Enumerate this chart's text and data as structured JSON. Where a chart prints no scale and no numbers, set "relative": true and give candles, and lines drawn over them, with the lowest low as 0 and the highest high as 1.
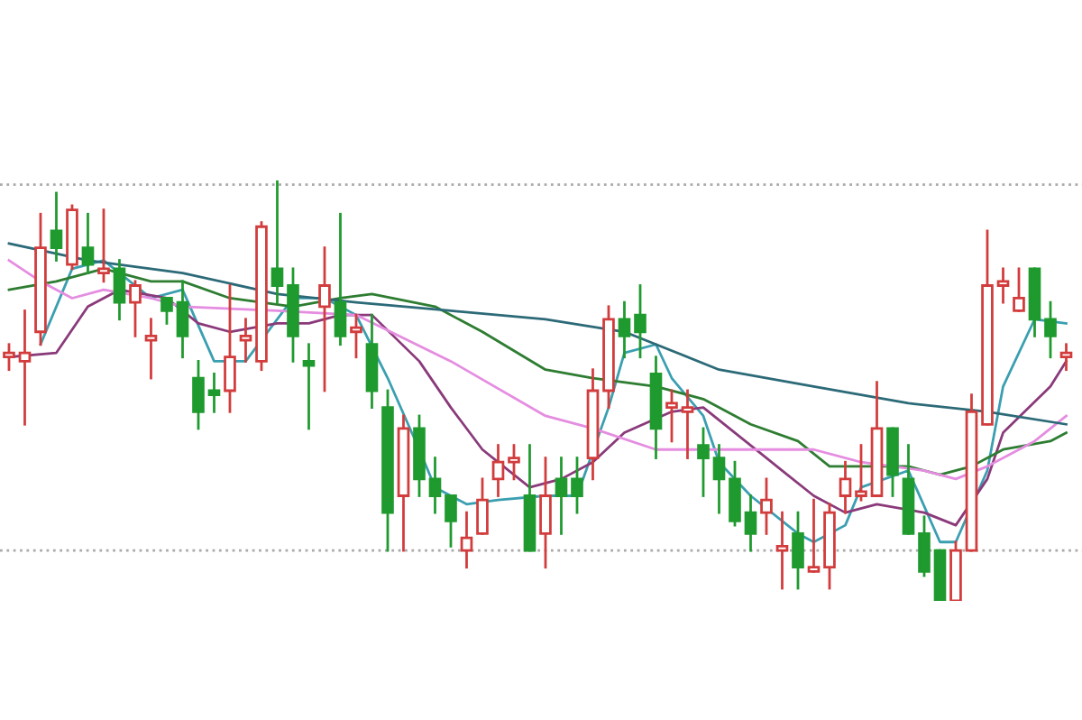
{
  "chart_data": {
    "type": "candlestick",
    "relative": true,
    "categories": [
      null,
      null,
      null,
      null,
      null,
      null,
      null,
      null,
      null,
      null,
      null,
      null,
      null,
      null,
      null,
      null,
      null,
      null,
      null,
      null,
      null,
      null,
      null,
      null,
      null,
      null,
      null,
      null,
      null,
      null,
      null,
      null,
      null,
      null,
      null,
      null,
      null,
      null,
      null,
      null,
      null,
      null,
      null,
      null,
      null,
      null,
      null,
      null,
      null,
      null,
      null,
      null,
      null,
      null,
      null,
      null,
      null,
      null,
      null,
      null,
      null,
      null,
      null,
      null,
      null,
      null,
      null,
      null
    ],
    "ohlc": [
      [
        0.58,
        0.61,
        0.55,
        0.59
      ],
      [
        0.57,
        0.69,
        0.42,
        0.59
      ],
      [
        0.64,
        0.92,
        0.61,
        0.84
      ],
      [
        0.88,
        0.97,
        0.81,
        0.84
      ],
      [
        0.8,
        0.94,
        0.79,
        0.93
      ],
      [
        0.84,
        0.92,
        0.78,
        0.8
      ],
      [
        0.78,
        0.93,
        0.76,
        0.79
      ],
      [
        0.79,
        0.81,
        0.67,
        0.71
      ],
      [
        0.71,
        0.76,
        0.63,
        0.75
      ],
      [
        0.62,
        0.67,
        0.53,
        0.63
      ],
      [
        0.72,
        0.72,
        0.66,
        0.69
      ],
      [
        0.71,
        0.76,
        0.58,
        0.63
      ],
      [
        0.53,
        0.57,
        0.41,
        0.45
      ],
      [
        0.5,
        0.54,
        0.45,
        0.49
      ],
      [
        0.5,
        0.75,
        0.45,
        0.58
      ],
      [
        0.62,
        0.67,
        0.57,
        0.63
      ],
      [
        0.57,
        0.9,
        0.55,
        0.89
      ],
      [
        0.79,
        1.0,
        0.71,
        0.75
      ],
      [
        0.75,
        0.79,
        0.57,
        0.63
      ],
      [
        0.57,
        0.61,
        0.41,
        0.56
      ],
      [
        0.7,
        0.84,
        0.5,
        0.75
      ],
      [
        0.71,
        0.92,
        0.61,
        0.63
      ],
      [
        0.64,
        0.68,
        0.58,
        0.65
      ],
      [
        0.61,
        0.68,
        0.46,
        0.5
      ],
      [
        0.46,
        0.5,
        0.12,
        0.21
      ],
      [
        0.25,
        0.44,
        0.12,
        0.41
      ],
      [
        0.41,
        0.44,
        0.25,
        0.29
      ],
      [
        0.29,
        0.34,
        0.21,
        0.25
      ],
      [
        0.25,
        0.25,
        0.13,
        0.19
      ],
      [
        0.12,
        0.21,
        0.08,
        0.15
      ],
      [
        0.16,
        0.29,
        0.16,
        0.24
      ],
      [
        0.29,
        0.37,
        0.25,
        0.33
      ],
      [
        0.33,
        0.37,
        0.29,
        0.34
      ],
      [
        0.25,
        0.37,
        0.12,
        0.12
      ],
      [
        0.16,
        0.34,
        0.08,
        0.25
      ],
      [
        0.29,
        0.34,
        0.16,
        0.25
      ],
      [
        0.29,
        0.34,
        0.21,
        0.25
      ],
      [
        0.34,
        0.55,
        0.29,
        0.5
      ],
      [
        0.5,
        0.7,
        0.46,
        0.67
      ],
      [
        0.67,
        0.71,
        0.58,
        0.63
      ],
      [
        0.68,
        0.75,
        0.58,
        0.64
      ],
      [
        0.54,
        0.58,
        0.34,
        0.41
      ],
      [
        0.46,
        0.5,
        0.38,
        0.47
      ],
      [
        0.45,
        0.5,
        0.34,
        0.46
      ],
      [
        0.37,
        0.41,
        0.25,
        0.34
      ],
      [
        0.34,
        0.37,
        0.21,
        0.29
      ],
      [
        0.29,
        0.33,
        0.18,
        0.19
      ],
      [
        0.21,
        0.25,
        0.12,
        0.16
      ],
      [
        0.21,
        0.29,
        0.16,
        0.24
      ],
      [
        0.12,
        0.21,
        0.03,
        0.13
      ],
      [
        0.16,
        0.21,
        0.03,
        0.08
      ],
      [
        0.07,
        0.24,
        0.07,
        0.08
      ],
      [
        0.08,
        0.23,
        0.03,
        0.21
      ],
      [
        0.25,
        0.33,
        0.21,
        0.29
      ],
      [
        0.25,
        0.37,
        0.24,
        0.26
      ],
      [
        0.25,
        0.52,
        0.25,
        0.41
      ],
      [
        0.41,
        0.41,
        0.25,
        0.3
      ],
      [
        0.29,
        0.37,
        0.16,
        0.16
      ],
      [
        0.16,
        0.2,
        0.06,
        0.07
      ],
      [
        0.12,
        0.12,
        0,
        0
      ],
      [
        0,
        0.14,
        0,
        0.12
      ],
      [
        0.12,
        0.49,
        0.12,
        0.45
      ],
      [
        0.42,
        0.88,
        0.42,
        0.75
      ],
      [
        0.75,
        0.79,
        0.71,
        0.76
      ],
      [
        0.69,
        0.79,
        0.69,
        0.72
      ],
      [
        0.79,
        0.79,
        0.63,
        0.67
      ],
      [
        0.67,
        0.71,
        0.58,
        0.63
      ],
      [
        0.58,
        0.61,
        0.55,
        0.59
      ]
    ],
    "colors": [
      "#d23c3c",
      "#d23c3c",
      "#d23c3c",
      "#1f9a2e",
      "#d23c3c",
      "#1f9a2e",
      "#d23c3c",
      "#1f9a2e",
      "#d23c3c",
      "#d23c3c",
      "#1f9a2e",
      "#1f9a2e",
      "#1f9a2e",
      "#1f9a2e",
      "#d23c3c",
      "#d23c3c",
      "#d23c3c",
      "#1f9a2e",
      "#1f9a2e",
      "#1f9a2e",
      "#d23c3c",
      "#1f9a2e",
      "#d23c3c",
      "#1f9a2e",
      "#1f9a2e",
      "#d23c3c",
      "#1f9a2e",
      "#1f9a2e",
      "#1f9a2e",
      "#d23c3c",
      "#d23c3c",
      "#d23c3c",
      "#d23c3c",
      "#1f9a2e",
      "#d23c3c",
      "#1f9a2e",
      "#1f9a2e",
      "#d23c3c",
      "#d23c3c",
      "#1f9a2e",
      "#1f9a2e",
      "#1f9a2e",
      "#d23c3c",
      "#d23c3c",
      "#1f9a2e",
      "#1f9a2e",
      "#1f9a2e",
      "#1f9a2e",
      "#d23c3c",
      "#d23c3c",
      "#1f9a2e",
      "#d23c3c",
      "#d23c3c",
      "#d23c3c",
      "#d23c3c",
      "#d23c3c",
      "#1f9a2e",
      "#1f9a2e",
      "#1f9a2e",
      "#1f9a2e",
      "#d23c3c",
      "#d23c3c",
      "#d23c3c",
      "#d23c3c",
      "#d23c3c",
      "#1f9a2e",
      "#1f9a2e",
      "#d23c3c"
    ],
    "series": [
      {
        "type": "line",
        "color": "#3a9fb0",
        "values": [
          null,
          null,
          0.61,
          null,
          0.79,
          null,
          0.81,
          null,
          null,
          0.72,
          null,
          0.74,
          null,
          0.57,
          null,
          0.57,
          null,
          null,
          0.72,
          null,
          0.72,
          null,
          0.68,
          null,
          0.53,
          null,
          0.36,
          0.27,
          null,
          0.23,
          null,
          0.24,
          null,
          null,
          0.25,
          null,
          0.25,
          null,
          0.46,
          0.59,
          null,
          0.61,
          0.53,
          null,
          0.44,
          0.33,
          null,
          0.25,
          null,
          null,
          0.16,
          0.14,
          null,
          0.18,
          0.27,
          null,
          null,
          0.31,
          null,
          0.14,
          0.14,
          null,
          0.31,
          0.51,
          null,
          0.67,
          null,
          0.66
        ]
      },
      {
        "type": "line",
        "color": "#8a3a7a",
        "values": [
          0.58,
          null,
          null,
          0.59,
          null,
          0.7,
          null,
          0.74,
          null,
          null,
          0.72,
          null,
          0.66,
          null,
          0.64,
          null,
          null,
          0.66,
          null,
          0.66,
          null,
          0.68,
          null,
          0.68,
          null,
          null,
          0.57,
          null,
          0.46,
          null,
          0.36,
          null,
          null,
          0.27,
          null,
          0.29,
          null,
          0.33,
          null,
          0.4,
          null,
          null,
          0.45,
          null,
          0.46,
          null,
          0.4,
          null,
          null,
          0.31,
          null,
          0.25,
          null,
          0.21,
          null,
          0.23,
          null,
          null,
          0.21,
          null,
          0.18,
          null,
          0.29,
          0.4,
          null,
          null,
          0.51,
          0.57
        ]
      },
      {
        "type": "line",
        "color": "#2e7d32",
        "values": [
          0.74,
          null,
          null,
          0.76,
          null,
          null,
          0.79,
          null,
          null,
          0.76,
          null,
          0.76,
          null,
          null,
          0.72,
          null,
          null,
          null,
          0.7,
          null,
          null,
          0.72,
          null,
          0.73,
          null,
          null,
          null,
          0.7,
          null,
          null,
          0.64,
          null,
          null,
          null,
          0.55,
          null,
          null,
          0.53,
          null,
          null,
          null,
          0.51,
          null,
          null,
          0.48,
          null,
          null,
          0.42,
          null,
          null,
          0.38,
          null,
          0.32,
          null,
          0.32,
          null,
          null,
          0.32,
          null,
          0.3,
          null,
          0.32,
          null,
          0.36,
          null,
          null,
          0.38,
          0.4
        ]
      },
      {
        "type": "line",
        "color": "#e58de0",
        "values": [
          0.81,
          null,
          0.76,
          null,
          0.72,
          null,
          0.74,
          null,
          null,
          0.72,
          null,
          0.7,
          null,
          null,
          null,
          null,
          null,
          0.69,
          null,
          null,
          null,
          null,
          0.68,
          null,
          null,
          null,
          null,
          null,
          0.57,
          null,
          null,
          null,
          null,
          null,
          0.44,
          null,
          null,
          0.41,
          null,
          null,
          null,
          0.36,
          null,
          null,
          null,
          0.36,
          null,
          null,
          null,
          null,
          null,
          0.36,
          null,
          null,
          0.33,
          null,
          null,
          null,
          0.31,
          null,
          0.29,
          null,
          0.32,
          null,
          null,
          0.38,
          null,
          0.44
        ]
      },
      {
        "type": "line",
        "color": "#2c6a78",
        "values": [
          0.85,
          null,
          null,
          null,
          null,
          0.81,
          null,
          null,
          null,
          null,
          null,
          0.78,
          null,
          null,
          null,
          null,
          null,
          0.73,
          null,
          null,
          null,
          null,
          0.71,
          null,
          null,
          null,
          null,
          null,
          0.69,
          null,
          null,
          null,
          null,
          null,
          0.67,
          null,
          null,
          null,
          null,
          0.64,
          null,
          null,
          null,
          null,
          null,
          0.55,
          null,
          null,
          null,
          null,
          null,
          0.51,
          null,
          null,
          null,
          null,
          null,
          0.47,
          null,
          null,
          null,
          null,
          0.45,
          null,
          null,
          null,
          null,
          0.42
        ]
      }
    ],
    "ref_lines": [
      {
        "axis": "y",
        "value": 0.99,
        "color": "#aaaaaa",
        "line_style": "dotted"
      },
      {
        "axis": "y",
        "value": 0.12,
        "color": "#aaaaaa",
        "line_style": "dotted"
      }
    ]
  }
}
